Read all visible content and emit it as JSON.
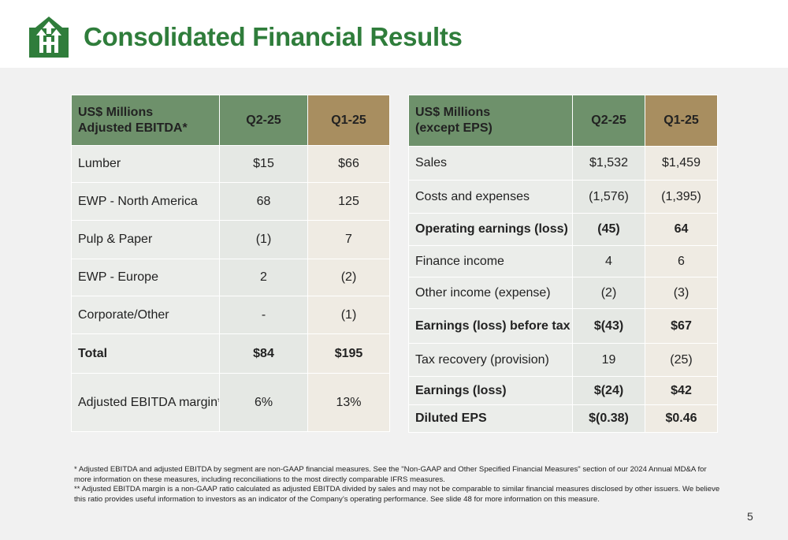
{
  "header": {
    "title": "Consolidated Financial Results",
    "logo_icon": "company-arrows-logo-icon",
    "brand_color": "#2f7d3b"
  },
  "ebitda_table": {
    "header": {
      "label_line1": "US$ Millions",
      "label_line2": "Adjusted EBITDA*",
      "col1": "Q2-25",
      "col2": "Q1-25"
    },
    "rows": [
      {
        "label": "Lumber",
        "q2": "$15",
        "q1": "$66"
      },
      {
        "label": "EWP - North America",
        "q2": "68",
        "q1": "125"
      },
      {
        "label": "Pulp & Paper",
        "q2": "(1)",
        "q1": "7"
      },
      {
        "label": "EWP - Europe",
        "q2": "2",
        "q1": "(2)"
      },
      {
        "label": "Corporate/Other",
        "q2": "-",
        "q1": "(1)"
      },
      {
        "label": "Total",
        "q2": "$84",
        "q1": "$195"
      },
      {
        "label": "Adjusted EBITDA margin**",
        "q2": "6%",
        "q1": "13%"
      }
    ]
  },
  "earnings_table": {
    "header": {
      "label_line1": "US$ Millions",
      "label_line2": "(except EPS)",
      "col1": "Q2-25",
      "col2": "Q1-25"
    },
    "rows": [
      {
        "label": "Sales",
        "q2": "$1,532",
        "q1": "$1,459"
      },
      {
        "label": "Costs and expenses",
        "q2": "(1,576)",
        "q1": "(1,395)"
      },
      {
        "label": "Operating earnings (loss)",
        "q2": "(45)",
        "q1": "64"
      },
      {
        "label": "Finance income",
        "q2": "4",
        "q1": "6"
      },
      {
        "label": "Other income (expense)",
        "q2": "(2)",
        "q1": "(3)"
      },
      {
        "label": "Earnings (loss) before tax",
        "q2": "$(43)",
        "q1": "$67"
      },
      {
        "label": "Tax recovery (provision)",
        "q2": "19",
        "q1": "(25)"
      },
      {
        "label": "Earnings (loss)",
        "q2": "$(24)",
        "q1": "$42"
      },
      {
        "label": "Diluted EPS",
        "q2": "$(0.38)",
        "q1": "$0.46"
      }
    ]
  },
  "footnotes": {
    "note1": "* Adjusted EBITDA and adjusted EBITDA by segment are non-GAAP financial measures. See the \"Non-GAAP and Other Specified  Financial Measures\" section of our 2024 Annual MD&A for more information on these measures, including reconciliations to the most directly comparable IFRS measures.",
    "note2": "** Adjusted EBITDA margin is a non-GAAP ratio calculated as adjusted EBITDA divided by sales and may not be comparable to similar financial measures disclosed by other issuers. We believe this ratio provides useful information to investors as an indicator of the Company’s operating performance. See slide 48 for more information on this measure."
  },
  "page_number": "5"
}
